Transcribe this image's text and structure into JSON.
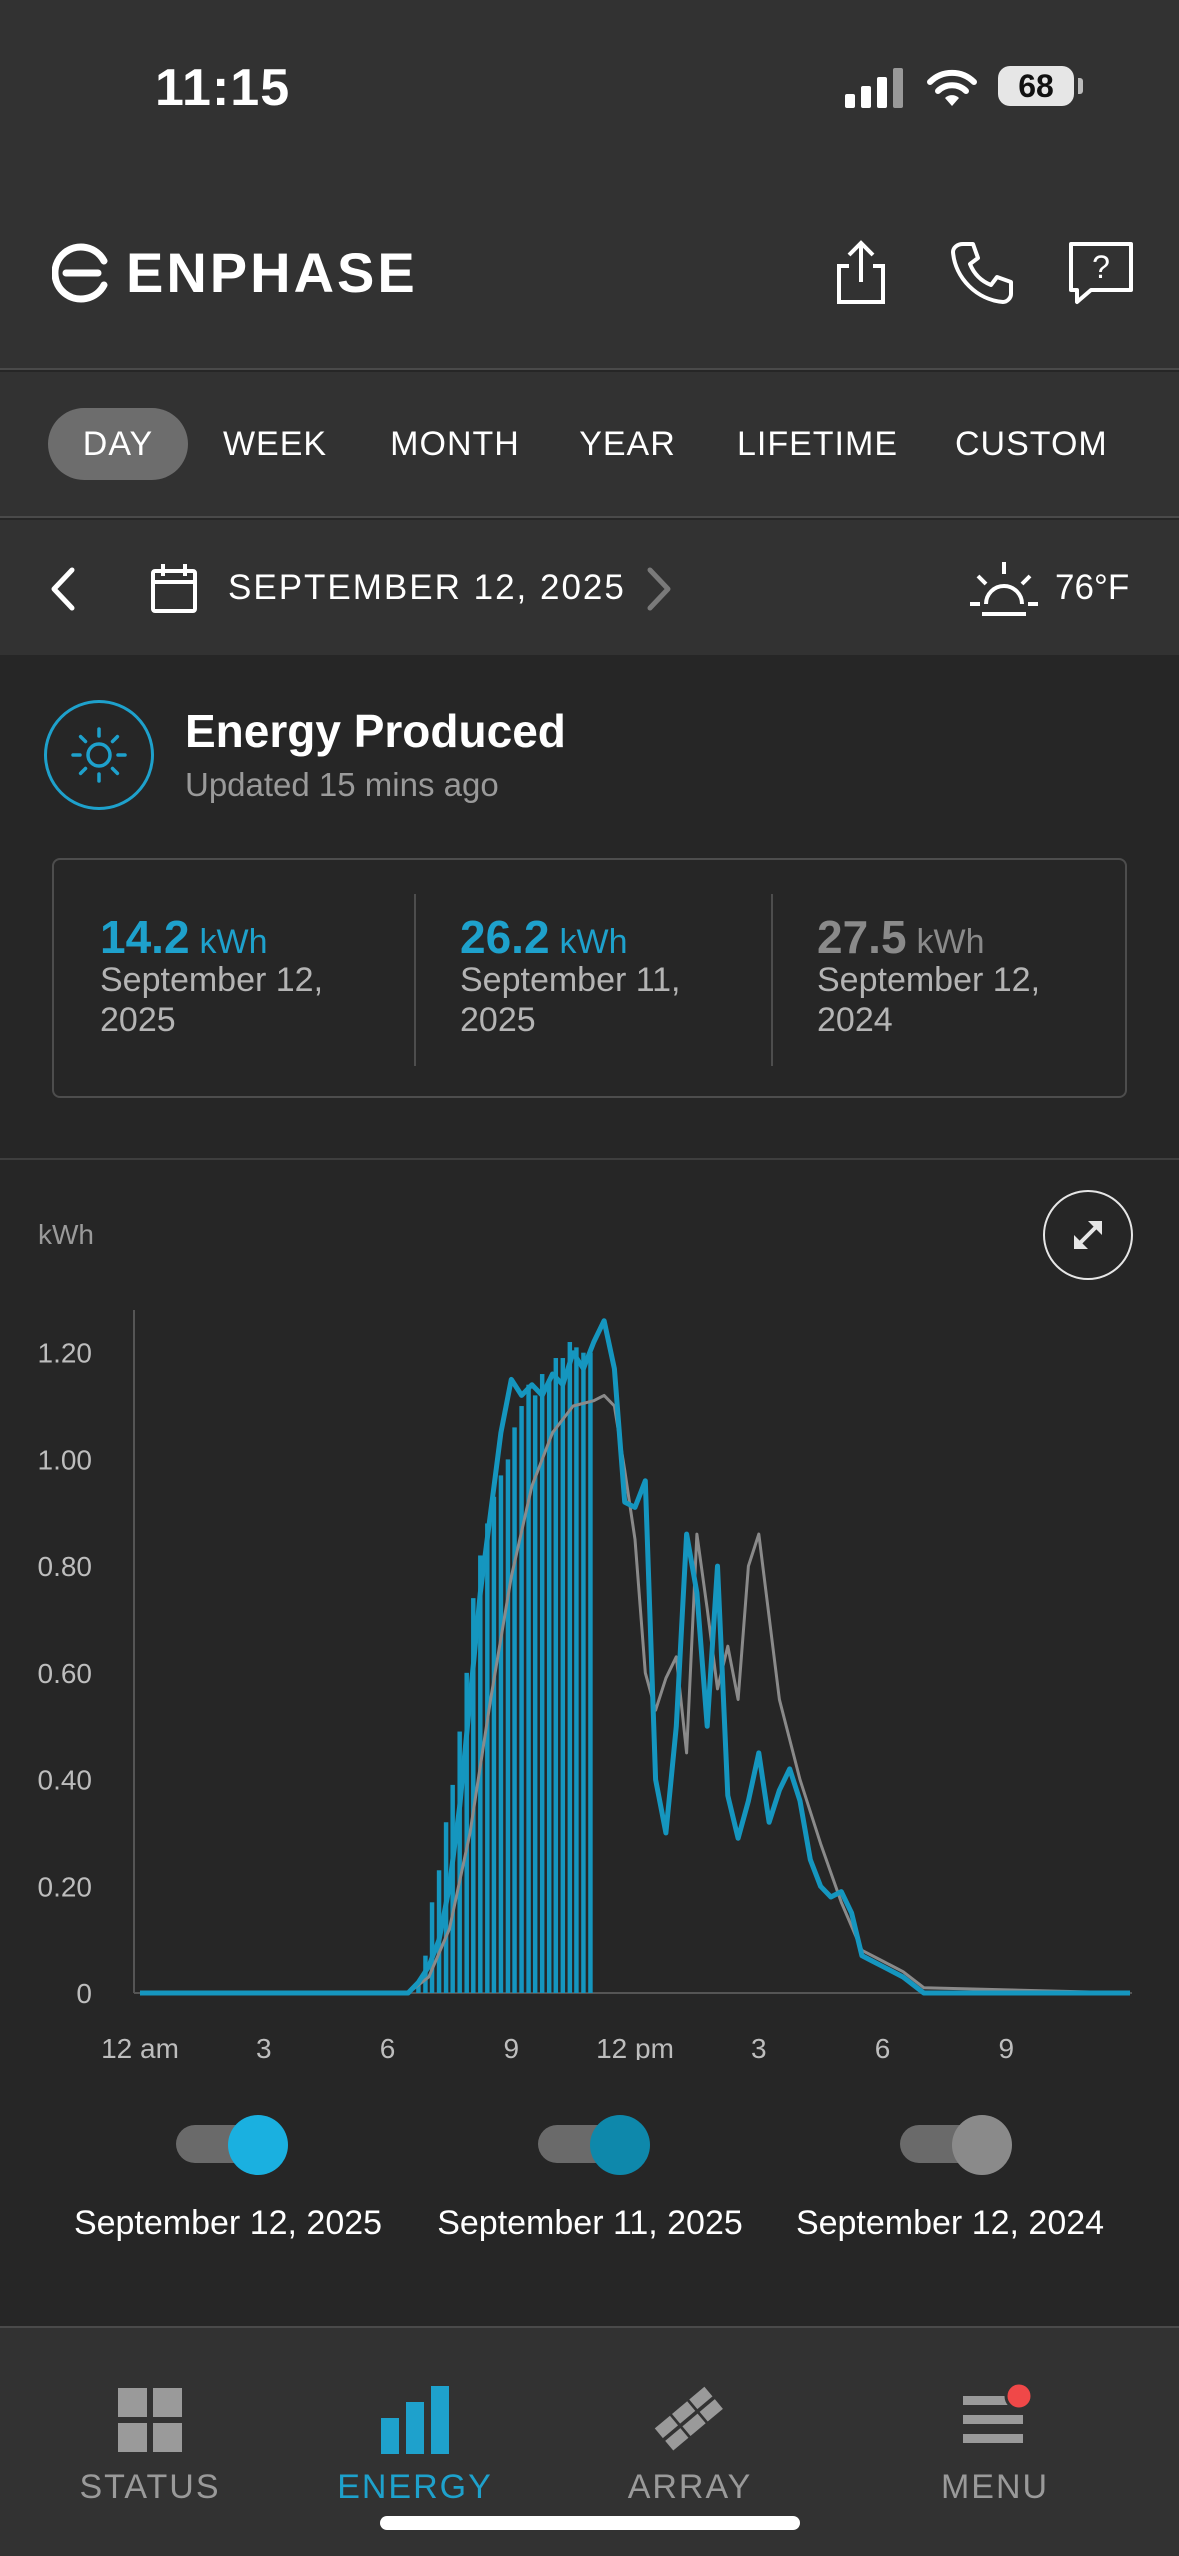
{
  "status_bar": {
    "time": "11:15",
    "battery": "68"
  },
  "header": {
    "brand": "ENPHASE"
  },
  "period_tabs": [
    {
      "label": "DAY",
      "active": true
    },
    {
      "label": "WEEK",
      "active": false
    },
    {
      "label": "MONTH",
      "active": false
    },
    {
      "label": "YEAR",
      "active": false
    },
    {
      "label": "LIFETIME",
      "active": false
    },
    {
      "label": "CUSTOM",
      "active": false
    }
  ],
  "date_nav": {
    "date": "SEPTEMBER 12, 2025",
    "temperature": "76°F"
  },
  "produced": {
    "title": "Energy Produced",
    "updated": "Updated 15 mins ago"
  },
  "summary": [
    {
      "value": "14.2",
      "unit": "kWh",
      "date": "September 12, 2025",
      "color": "#1ea1cc"
    },
    {
      "value": "26.2",
      "unit": "kWh",
      "date": "September 11, 2025",
      "color": "#1ea1cc"
    },
    {
      "value": "27.5",
      "unit": "kWh",
      "date": "September 12, 2024",
      "color": "#8a8a8a"
    }
  ],
  "chart_data": {
    "type": "bar",
    "ylabel": "kWh",
    "ylim": [
      0,
      1.28
    ],
    "y_ticks": [
      "0",
      "0.20",
      "0.40",
      "0.60",
      "0.80",
      "1.00",
      "1.20"
    ],
    "y_tick_values": [
      0,
      0.2,
      0.4,
      0.6,
      0.8,
      1.0,
      1.2
    ],
    "x_ticks": [
      "12 am",
      "3",
      "6",
      "9",
      "12 pm",
      "3",
      "6",
      "9"
    ],
    "x_tick_hours": [
      0,
      3,
      6,
      9,
      12,
      15,
      18,
      21
    ],
    "x_range_hours": [
      0,
      24
    ],
    "series": [
      {
        "name": "September 12, 2025",
        "type": "bar",
        "color": "#1596bf",
        "x_hours": [
          6.75,
          6.92,
          7.08,
          7.25,
          7.42,
          7.58,
          7.75,
          7.92,
          8.08,
          8.25,
          8.42,
          8.58,
          8.75,
          8.92,
          9.08,
          9.25,
          9.42,
          9.58,
          9.75,
          9.92,
          10.08,
          10.25,
          10.42,
          10.58,
          10.75,
          10.92
        ],
        "values": [
          0.02,
          0.07,
          0.17,
          0.23,
          0.32,
          0.39,
          0.49,
          0.6,
          0.74,
          0.82,
          0.88,
          0.93,
          0.97,
          1.0,
          1.06,
          1.1,
          1.14,
          1.12,
          1.16,
          1.15,
          1.19,
          1.19,
          1.22,
          1.21,
          1.2,
          1.2
        ]
      },
      {
        "name": "September 11, 2025",
        "type": "line",
        "color": "#1596bf",
        "x_hours": [
          0,
          6.5,
          6.75,
          7.0,
          7.25,
          7.5,
          7.75,
          8.0,
          8.25,
          8.5,
          8.75,
          9.0,
          9.25,
          9.5,
          9.75,
          10.0,
          10.25,
          10.5,
          10.75,
          11.0,
          11.25,
          11.5,
          11.75,
          12.0,
          12.25,
          12.5,
          12.75,
          13.0,
          13.25,
          13.5,
          13.75,
          14.0,
          14.25,
          14.5,
          14.75,
          15.0,
          15.25,
          15.5,
          15.75,
          16.0,
          16.25,
          16.5,
          16.75,
          17.0,
          17.25,
          17.5,
          17.75,
          18.0,
          18.5,
          19.0,
          24.0
        ],
        "values": [
          0,
          0,
          0.02,
          0.05,
          0.1,
          0.2,
          0.35,
          0.55,
          0.75,
          0.9,
          1.05,
          1.15,
          1.12,
          1.14,
          1.12,
          1.16,
          1.14,
          1.2,
          1.17,
          1.22,
          1.26,
          1.17,
          0.92,
          0.91,
          0.96,
          0.4,
          0.3,
          0.5,
          0.86,
          0.75,
          0.5,
          0.8,
          0.37,
          0.29,
          0.36,
          0.45,
          0.32,
          0.38,
          0.42,
          0.36,
          0.25,
          0.2,
          0.18,
          0.19,
          0.15,
          0.07,
          0.06,
          0.05,
          0.03,
          0.0,
          0.0
        ]
      },
      {
        "name": "September 12, 2024",
        "type": "line",
        "color": "#8a8a8a",
        "x_hours": [
          0,
          6.5,
          7.0,
          7.5,
          8.0,
          8.5,
          9.0,
          9.5,
          10.0,
          10.5,
          11.0,
          11.25,
          11.5,
          11.75,
          12.0,
          12.25,
          12.5,
          12.75,
          13.0,
          13.25,
          13.5,
          13.75,
          14.0,
          14.25,
          14.5,
          14.75,
          15.0,
          15.5,
          16.0,
          16.5,
          17.0,
          17.5,
          18.0,
          18.5,
          19.0,
          24.0
        ],
        "values": [
          0,
          0,
          0.03,
          0.12,
          0.3,
          0.55,
          0.78,
          0.95,
          1.05,
          1.1,
          1.11,
          1.12,
          1.1,
          0.98,
          0.85,
          0.6,
          0.53,
          0.59,
          0.63,
          0.45,
          0.86,
          0.72,
          0.57,
          0.65,
          0.55,
          0.8,
          0.86,
          0.55,
          0.4,
          0.28,
          0.17,
          0.08,
          0.06,
          0.04,
          0.01,
          0.0
        ]
      }
    ]
  },
  "legend": [
    {
      "label": "September 12, 2025",
      "on": true,
      "color": "#1ab0e0"
    },
    {
      "label": "September 11, 2025",
      "on": true,
      "color": "#0e88ab"
    },
    {
      "label": "September 12, 2024",
      "on": true,
      "color": "#8a8a8a"
    }
  ],
  "bottom_nav": [
    {
      "label": "STATUS",
      "icon": "grid-icon",
      "active": false
    },
    {
      "label": "ENERGY",
      "icon": "bar-chart-icon",
      "active": true
    },
    {
      "label": "ARRAY",
      "icon": "panel-array-icon",
      "active": false
    },
    {
      "label": "MENU",
      "icon": "menu-icon",
      "active": false
    }
  ]
}
